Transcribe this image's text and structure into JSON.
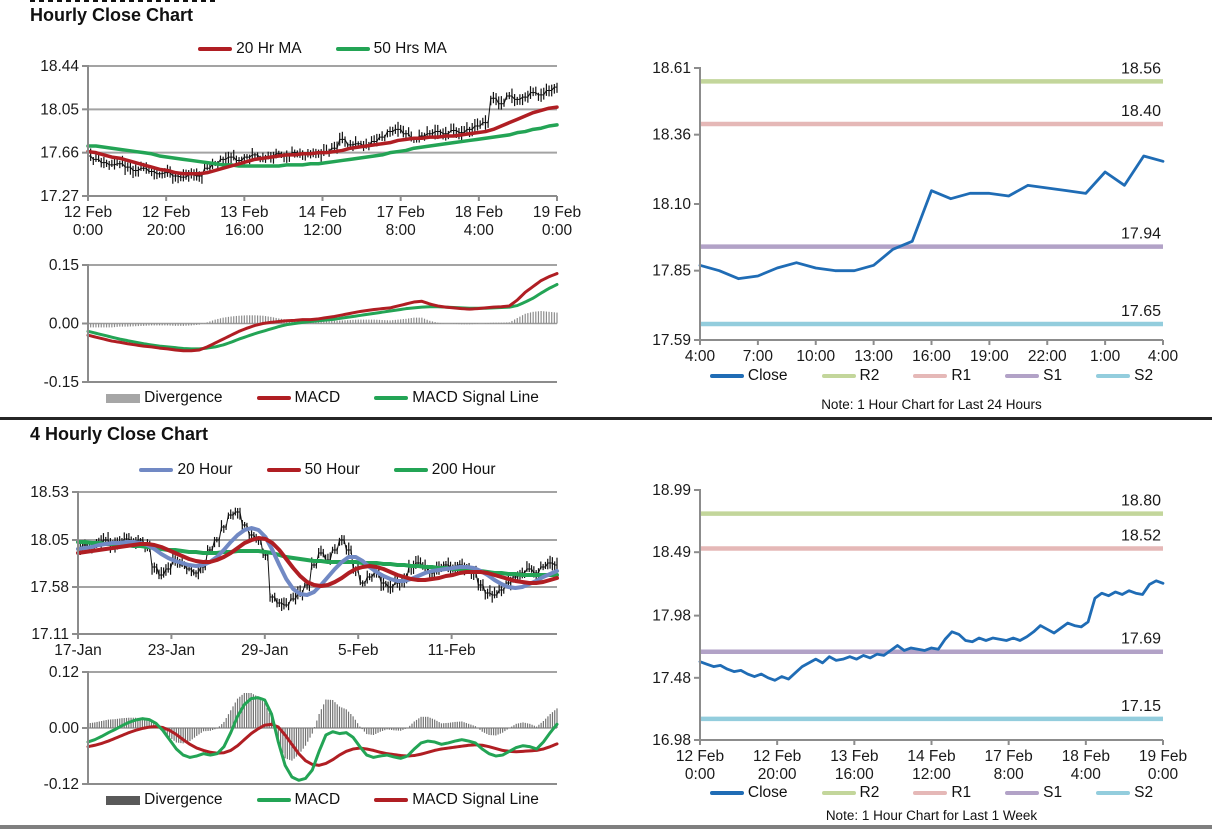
{
  "titles": {
    "hourly": "Hourly Close Chart",
    "four_hourly": "4 Hourly Close Chart"
  },
  "chart_data": [
    {
      "id": "hourly_price",
      "type": "candlestick+line",
      "title": "Hourly Close Chart",
      "ylim": [
        17.27,
        18.44
      ],
      "yticks": [
        18.44,
        18.05,
        17.66,
        17.27
      ],
      "gridlines": [
        18.05,
        17.66
      ],
      "xticklabels": [
        [
          "12 Feb",
          "0:00"
        ],
        [
          "12 Feb",
          "20:00"
        ],
        [
          "13 Feb",
          "16:00"
        ],
        [
          "14 Feb",
          "12:00"
        ],
        [
          "17 Feb",
          "8:00"
        ],
        [
          "18 Feb",
          "4:00"
        ],
        [
          "19 Feb",
          "0:00"
        ]
      ],
      "legend": [
        {
          "label": "20 Hr MA",
          "color": "#b01e23"
        },
        {
          "label": "50 Hrs MA",
          "color": "#23a455"
        }
      ],
      "price_color": "#111111",
      "price": [
        17.63,
        17.6,
        17.57,
        17.55,
        17.56,
        17.53,
        17.5,
        17.52,
        17.49,
        17.47,
        17.48,
        17.45,
        17.44,
        17.46,
        17.45,
        17.52,
        17.56,
        17.6,
        17.62,
        17.59,
        17.62,
        17.64,
        17.61,
        17.63,
        17.65,
        17.63,
        17.66,
        17.64,
        17.66,
        17.65,
        17.67,
        17.7,
        17.78,
        17.73,
        17.74,
        17.72,
        17.76,
        17.8,
        17.85,
        17.87,
        17.83,
        17.78,
        17.81,
        17.83,
        17.85,
        17.83,
        17.86,
        17.84,
        17.87,
        17.9,
        17.93,
        18.15,
        18.1,
        18.17,
        18.14,
        18.16,
        18.2,
        18.18,
        18.22,
        18.25
      ],
      "ma20": [
        17.67,
        17.66,
        17.64,
        17.62,
        17.61,
        17.59,
        17.57,
        17.55,
        17.53,
        17.51,
        17.5,
        17.48,
        17.47,
        17.47,
        17.47,
        17.48,
        17.5,
        17.52,
        17.54,
        17.56,
        17.58,
        17.6,
        17.61,
        17.62,
        17.63,
        17.64,
        17.64,
        17.65,
        17.65,
        17.66,
        17.66,
        17.67,
        17.68,
        17.7,
        17.71,
        17.72,
        17.73,
        17.74,
        17.75,
        17.77,
        17.78,
        17.79,
        17.79,
        17.8,
        17.8,
        17.81,
        17.81,
        17.82,
        17.83,
        17.84,
        17.85,
        17.87,
        17.9,
        17.93,
        17.96,
        17.99,
        18.02,
        18.04,
        18.06,
        18.07
      ],
      "ma50": [
        17.72,
        17.72,
        17.71,
        17.7,
        17.69,
        17.68,
        17.67,
        17.66,
        17.65,
        17.63,
        17.62,
        17.61,
        17.6,
        17.59,
        17.58,
        17.57,
        17.56,
        17.55,
        17.55,
        17.54,
        17.54,
        17.54,
        17.54,
        17.54,
        17.54,
        17.55,
        17.55,
        17.55,
        17.56,
        17.56,
        17.57,
        17.58,
        17.59,
        17.6,
        17.61,
        17.62,
        17.63,
        17.64,
        17.66,
        17.67,
        17.68,
        17.7,
        17.71,
        17.72,
        17.73,
        17.74,
        17.75,
        17.76,
        17.77,
        17.78,
        17.79,
        17.8,
        17.81,
        17.82,
        17.84,
        17.85,
        17.87,
        17.88,
        17.9,
        17.91
      ]
    },
    {
      "id": "hourly_macd",
      "type": "macd",
      "ylim": [
        -0.15,
        0.15
      ],
      "yticks": [
        0.15,
        0.0,
        -0.15
      ],
      "legend": [
        {
          "label": "Divergence",
          "color": "#a6a6a6"
        },
        {
          "label": "MACD",
          "color": "#b01e23"
        },
        {
          "label": "MACD Signal Line",
          "color": "#23a455"
        }
      ],
      "bar_color": "#8c8c8c",
      "macd": [
        -0.03,
        -0.035,
        -0.04,
        -0.045,
        -0.048,
        -0.052,
        -0.055,
        -0.058,
        -0.06,
        -0.063,
        -0.065,
        -0.068,
        -0.07,
        -0.07,
        -0.068,
        -0.06,
        -0.05,
        -0.04,
        -0.03,
        -0.02,
        -0.012,
        -0.005,
        0.0,
        0.003,
        0.005,
        0.007,
        0.008,
        0.01,
        0.01,
        0.012,
        0.015,
        0.018,
        0.022,
        0.026,
        0.03,
        0.033,
        0.036,
        0.038,
        0.04,
        0.045,
        0.05,
        0.055,
        0.057,
        0.05,
        0.045,
        0.042,
        0.04,
        0.038,
        0.037,
        0.038,
        0.04,
        0.042,
        0.043,
        0.045,
        0.06,
        0.08,
        0.095,
        0.11,
        0.12,
        0.128
      ],
      "signal": [
        -0.02,
        -0.025,
        -0.03,
        -0.035,
        -0.04,
        -0.044,
        -0.048,
        -0.052,
        -0.055,
        -0.058,
        -0.06,
        -0.062,
        -0.064,
        -0.065,
        -0.065,
        -0.063,
        -0.06,
        -0.055,
        -0.048,
        -0.04,
        -0.033,
        -0.026,
        -0.02,
        -0.014,
        -0.008,
        -0.003,
        0.0,
        0.003,
        0.005,
        0.007,
        0.009,
        0.011,
        0.014,
        0.017,
        0.02,
        0.023,
        0.026,
        0.029,
        0.032,
        0.035,
        0.038,
        0.04,
        0.042,
        0.043,
        0.043,
        0.042,
        0.041,
        0.04,
        0.039,
        0.039,
        0.039,
        0.04,
        0.041,
        0.042,
        0.046,
        0.055,
        0.065,
        0.078,
        0.09,
        0.1
      ]
    },
    {
      "id": "pivot_24h",
      "type": "line",
      "ylim": [
        17.59,
        18.61
      ],
      "yticks": [
        18.61,
        18.36,
        18.1,
        17.85,
        17.59
      ],
      "xticklabels": [
        "4:00",
        "7:00",
        "10:00",
        "13:00",
        "16:00",
        "19:00",
        "22:00",
        "1:00",
        "4:00"
      ],
      "levels": [
        {
          "name": "R2",
          "value": 18.56,
          "label": "18.56",
          "color": "#c3d69b"
        },
        {
          "name": "R1",
          "value": 18.4,
          "label": "18.40",
          "color": "#e5b8b7"
        },
        {
          "name": "S1",
          "value": 17.94,
          "label": "17.94",
          "color": "#b2a2c7"
        },
        {
          "name": "S2",
          "value": 17.65,
          "label": "17.65",
          "color": "#93cddd"
        }
      ],
      "legend": [
        {
          "label": "Close",
          "color": "#1f6cb5"
        },
        {
          "label": "R2",
          "color": "#c3d69b"
        },
        {
          "label": "R1",
          "color": "#e5b8b7"
        },
        {
          "label": "S1",
          "color": "#b2a2c7"
        },
        {
          "label": "S2",
          "color": "#93cddd"
        }
      ],
      "close": [
        17.87,
        17.85,
        17.82,
        17.83,
        17.86,
        17.88,
        17.86,
        17.85,
        17.85,
        17.87,
        17.93,
        17.96,
        18.15,
        18.12,
        18.14,
        18.14,
        18.13,
        18.17,
        18.16,
        18.15,
        18.14,
        18.22,
        18.17,
        18.28,
        18.26
      ],
      "note": "Note: 1 Hour Chart for Last 24 Hours"
    },
    {
      "id": "four_hourly_price",
      "type": "candlestick+line",
      "title": "4 Hourly Close Chart",
      "ylim": [
        17.11,
        18.53
      ],
      "yticks": [
        18.53,
        18.05,
        17.58,
        17.11
      ],
      "gridlines": [
        18.05,
        17.58
      ],
      "xticklabels": [
        "17-Jan",
        "23-Jan",
        "29-Jan",
        "5-Feb",
        "11-Feb"
      ],
      "legend": [
        {
          "label": "20 Hour",
          "color": "#7189c4"
        },
        {
          "label": "50 Hour",
          "color": "#b01e23"
        },
        {
          "label": "200 Hour",
          "color": "#23a455"
        }
      ],
      "price_color": "#111111",
      "price": [
        17.95,
        18.0,
        17.97,
        18.02,
        18.05,
        18.0,
        18.03,
        18.06,
        18.04,
        18.05,
        17.98,
        17.78,
        17.7,
        17.76,
        17.85,
        17.8,
        17.76,
        17.72,
        17.78,
        17.95,
        18.05,
        18.18,
        18.3,
        18.33,
        18.2,
        18.1,
        18.05,
        17.9,
        17.48,
        17.42,
        17.4,
        17.46,
        17.52,
        17.6,
        17.8,
        17.92,
        17.85,
        17.95,
        18.05,
        17.95,
        17.75,
        17.62,
        17.68,
        17.72,
        17.62,
        17.58,
        17.62,
        17.65,
        17.78,
        17.82,
        17.78,
        17.72,
        17.76,
        17.8,
        17.78,
        17.8,
        17.76,
        17.72,
        17.6,
        17.52,
        17.5,
        17.55,
        17.62,
        17.68,
        17.72,
        17.76,
        17.72,
        17.78,
        17.82,
        17.8
      ],
      "ma20": [
        17.96,
        17.97,
        17.98,
        18.0,
        18.01,
        18.02,
        18.02,
        18.03,
        18.03,
        18.02,
        18.0,
        17.96,
        17.91,
        17.87,
        17.84,
        17.82,
        17.8,
        17.79,
        17.8,
        17.83,
        17.88,
        17.95,
        18.03,
        18.1,
        18.15,
        18.17,
        18.15,
        18.08,
        17.95,
        17.8,
        17.66,
        17.56,
        17.51,
        17.5,
        17.53,
        17.6,
        17.68,
        17.76,
        17.83,
        17.88,
        17.88,
        17.84,
        17.78,
        17.73,
        17.69,
        17.66,
        17.64,
        17.64,
        17.66,
        17.69,
        17.72,
        17.74,
        17.75,
        17.76,
        17.77,
        17.78,
        17.78,
        17.77,
        17.74,
        17.7,
        17.65,
        17.61,
        17.58,
        17.57,
        17.58,
        17.61,
        17.64,
        17.68,
        17.71,
        17.74
      ],
      "ma50": [
        17.92,
        17.93,
        17.94,
        17.95,
        17.96,
        17.97,
        17.98,
        17.99,
        18.0,
        18.01,
        18.01,
        18.0,
        17.98,
        17.95,
        17.92,
        17.89,
        17.86,
        17.84,
        17.83,
        17.83,
        17.85,
        17.88,
        17.92,
        17.97,
        18.02,
        18.05,
        18.07,
        18.06,
        18.02,
        17.95,
        17.86,
        17.77,
        17.69,
        17.63,
        17.6,
        17.59,
        17.6,
        17.63,
        17.67,
        17.72,
        17.76,
        17.78,
        17.79,
        17.78,
        17.76,
        17.73,
        17.7,
        17.68,
        17.66,
        17.65,
        17.65,
        17.66,
        17.67,
        17.69,
        17.7,
        17.72,
        17.73,
        17.73,
        17.73,
        17.72,
        17.7,
        17.68,
        17.66,
        17.64,
        17.63,
        17.62,
        17.62,
        17.63,
        17.65,
        17.67
      ],
      "ma200": [
        18.03,
        18.03,
        18.02,
        18.02,
        18.01,
        18.01,
        18.0,
        18.0,
        17.99,
        17.99,
        17.98,
        17.97,
        17.96,
        17.95,
        17.95,
        17.94,
        17.93,
        17.93,
        17.92,
        17.92,
        17.92,
        17.93,
        17.93,
        17.94,
        17.94,
        17.94,
        17.94,
        17.93,
        17.92,
        17.9,
        17.88,
        17.87,
        17.86,
        17.85,
        17.84,
        17.84,
        17.83,
        17.83,
        17.83,
        17.83,
        17.83,
        17.82,
        17.82,
        17.82,
        17.81,
        17.81,
        17.8,
        17.8,
        17.79,
        17.79,
        17.78,
        17.78,
        17.77,
        17.77,
        17.76,
        17.76,
        17.75,
        17.75,
        17.74,
        17.73,
        17.72,
        17.72,
        17.71,
        17.71,
        17.7,
        17.7,
        17.7,
        17.7,
        17.7,
        17.7
      ]
    },
    {
      "id": "four_hourly_macd",
      "type": "macd",
      "ylim": [
        -0.12,
        0.12
      ],
      "yticks": [
        0.12,
        0.0,
        -0.12
      ],
      "legend": [
        {
          "label": "Divergence",
          "color": "#595959"
        },
        {
          "label": "MACD",
          "color": "#23a455"
        },
        {
          "label": "MACD Signal Line",
          "color": "#b01e23"
        }
      ],
      "bar_color": "#737373",
      "macd": [
        -0.03,
        -0.025,
        -0.018,
        -0.01,
        -0.003,
        0.005,
        0.012,
        0.017,
        0.02,
        0.018,
        0.01,
        -0.005,
        -0.025,
        -0.045,
        -0.058,
        -0.063,
        -0.06,
        -0.055,
        -0.058,
        -0.055,
        -0.04,
        -0.01,
        0.025,
        0.05,
        0.063,
        0.065,
        0.06,
        0.03,
        -0.03,
        -0.08,
        -0.105,
        -0.112,
        -0.108,
        -0.09,
        -0.05,
        -0.015,
        -0.008,
        -0.012,
        -0.01,
        -0.02,
        -0.04,
        -0.058,
        -0.063,
        -0.06,
        -0.058,
        -0.062,
        -0.065,
        -0.06,
        -0.045,
        -0.032,
        -0.028,
        -0.03,
        -0.035,
        -0.032,
        -0.028,
        -0.025,
        -0.028,
        -0.032,
        -0.045,
        -0.055,
        -0.06,
        -0.058,
        -0.05,
        -0.042,
        -0.038,
        -0.04,
        -0.045,
        -0.03,
        -0.01,
        0.008
      ],
      "signal": [
        -0.04,
        -0.037,
        -0.033,
        -0.028,
        -0.022,
        -0.016,
        -0.01,
        -0.005,
        -0.001,
        0.002,
        0.003,
        0.001,
        -0.005,
        -0.014,
        -0.025,
        -0.035,
        -0.043,
        -0.048,
        -0.052,
        -0.054,
        -0.053,
        -0.048,
        -0.038,
        -0.025,
        -0.012,
        -0.002,
        0.006,
        0.008,
        0.002,
        -0.015,
        -0.035,
        -0.055,
        -0.07,
        -0.078,
        -0.08,
        -0.076,
        -0.068,
        -0.058,
        -0.05,
        -0.045,
        -0.043,
        -0.045,
        -0.048,
        -0.052,
        -0.055,
        -0.057,
        -0.059,
        -0.06,
        -0.059,
        -0.056,
        -0.052,
        -0.048,
        -0.045,
        -0.043,
        -0.041,
        -0.039,
        -0.037,
        -0.036,
        -0.037,
        -0.04,
        -0.044,
        -0.048,
        -0.05,
        -0.051,
        -0.05,
        -0.049,
        -0.048,
        -0.045,
        -0.04,
        -0.034
      ]
    },
    {
      "id": "pivot_1week",
      "type": "line",
      "ylim": [
        16.98,
        18.99
      ],
      "yticks": [
        18.99,
        18.49,
        17.98,
        17.48,
        16.98
      ],
      "xticklabels": [
        [
          "12 Feb",
          "0:00"
        ],
        [
          "12 Feb",
          "20:00"
        ],
        [
          "13 Feb",
          "16:00"
        ],
        [
          "14 Feb",
          "12:00"
        ],
        [
          "17 Feb",
          "8:00"
        ],
        [
          "18 Feb",
          "4:00"
        ],
        [
          "19 Feb",
          "0:00"
        ]
      ],
      "levels": [
        {
          "name": "R2",
          "value": 18.8,
          "label": "18.80",
          "color": "#c3d69b"
        },
        {
          "name": "R1",
          "value": 18.52,
          "label": "18.52",
          "color": "#e5b8b7"
        },
        {
          "name": "S1",
          "value": 17.69,
          "label": "17.69",
          "color": "#b2a2c7"
        },
        {
          "name": "S2",
          "value": 17.15,
          "label": "17.15",
          "color": "#93cddd"
        }
      ],
      "legend": [
        {
          "label": "Close",
          "color": "#1f6cb5"
        },
        {
          "label": "R2",
          "color": "#c3d69b"
        },
        {
          "label": "R1",
          "color": "#e5b8b7"
        },
        {
          "label": "S1",
          "color": "#b2a2c7"
        },
        {
          "label": "S2",
          "color": "#93cddd"
        }
      ],
      "close": [
        17.61,
        17.59,
        17.57,
        17.58,
        17.55,
        17.53,
        17.54,
        17.51,
        17.49,
        17.51,
        17.48,
        17.46,
        17.49,
        17.47,
        17.52,
        17.57,
        17.6,
        17.63,
        17.6,
        17.65,
        17.62,
        17.63,
        17.65,
        17.63,
        17.66,
        17.64,
        17.67,
        17.66,
        17.7,
        17.74,
        17.7,
        17.72,
        17.71,
        17.7,
        17.72,
        17.71,
        17.79,
        17.85,
        17.83,
        17.78,
        17.77,
        17.8,
        17.78,
        17.8,
        17.79,
        17.78,
        17.8,
        17.78,
        17.81,
        17.85,
        17.9,
        17.87,
        17.84,
        17.88,
        17.92,
        17.9,
        17.89,
        17.93,
        18.12,
        18.16,
        18.14,
        18.17,
        18.15,
        18.18,
        18.16,
        18.15,
        18.23,
        18.26,
        18.24
      ],
      "note": "Note: 1 Hour Chart for Last 1 Week"
    }
  ]
}
